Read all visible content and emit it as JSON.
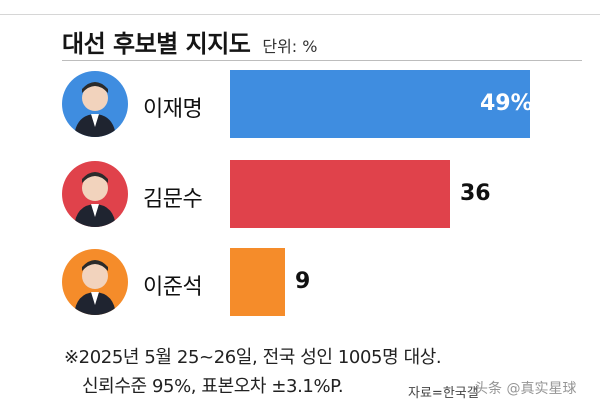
{
  "header": {
    "title": "대선 후보별 지지도",
    "unit": "단위: %"
  },
  "chart_data": {
    "type": "bar",
    "orientation": "horizontal",
    "categories": [
      "이재명",
      "김문수",
      "이준석"
    ],
    "values": [
      49,
      36,
      9
    ],
    "value_labels": [
      "49%",
      "36",
      "9"
    ],
    "colors": [
      "#3f8de0",
      "#e0424b",
      "#f58c2a"
    ],
    "avatar_colors": [
      "#3f8de0",
      "#e0424b",
      "#f58c2a"
    ],
    "xlim": [
      0,
      49
    ]
  },
  "footer": {
    "note_line1": "※2025년 5월 25~26일, 전국 성인 1005명 대상.",
    "note_line2": "신뢰수준 95%, 표본오차 ±3.1%P.",
    "source": "자료=한국갤",
    "watermark": "头条 @真实星球"
  }
}
